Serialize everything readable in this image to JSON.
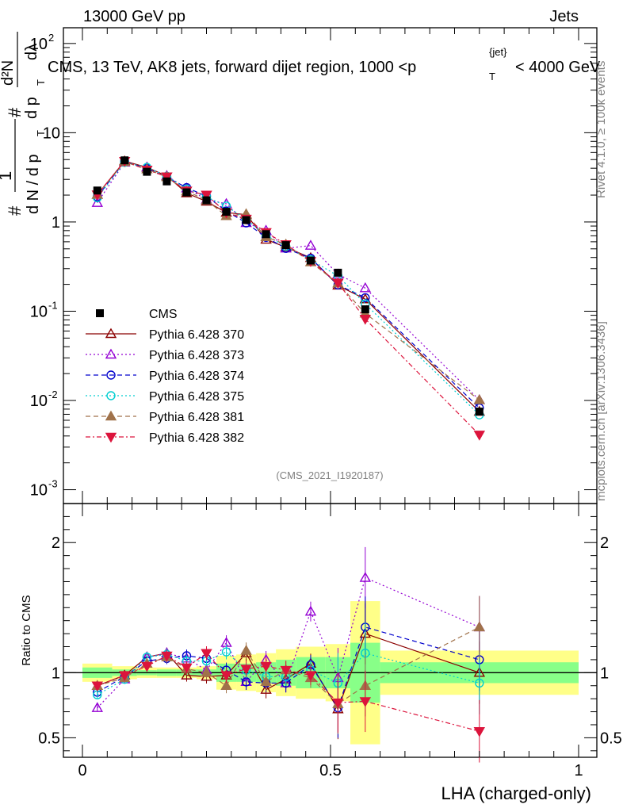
{
  "header": {
    "left": "13000 GeV pp",
    "right": "Jets"
  },
  "title_main": "CMS, 13 TeV, AK8 jets, forward dijet region, 1000 <p",
  "title_sub": "T",
  "title_sup": "{jet}",
  "title_tail": "< 4000 GeV",
  "side_text": {
    "rivet": "Rivet 4.1.0, ≥ 100k events",
    "mcplots": "mcplots.cern.ch [arXiv:1306.3436]"
  },
  "analysis_tag": "(CMS_2021_I1920187)",
  "ylabel_ratio": "Ratio to CMS",
  "xlabel": "LHA (charged-only)",
  "ylabel_main": {
    "hash1": "#",
    "one": "1",
    "dn": "d N / d p",
    "t": "T",
    "hash2": "#",
    "d2n": "d²N",
    "dpt": "d p",
    "t2": "T",
    "dl": "dλ"
  },
  "chart_data": {
    "type": "scatter",
    "xlabel": "LHA (charged-only)",
    "xlim": [
      0,
      1
    ],
    "main_yscale": "log",
    "main_ylim": [
      0.0007,
      150
    ],
    "main_yticks": [
      {
        "value": 0.001,
        "label": "10",
        "exp": "-3"
      },
      {
        "value": 0.01,
        "label": "10",
        "exp": "-2"
      },
      {
        "value": 0.1,
        "label": "10",
        "exp": "-1"
      },
      {
        "value": 1,
        "label": "1",
        "exp": ""
      },
      {
        "value": 10,
        "label": "10",
        "exp": ""
      },
      {
        "value": 100,
        "label": "10",
        "exp": "2"
      }
    ],
    "ratio_ylim": [
      0.35,
      2.3
    ],
    "ratio_yticks": [
      {
        "value": 0.5,
        "label": "0.5"
      },
      {
        "value": 1,
        "label": "1"
      },
      {
        "value": 2,
        "label": "2"
      }
    ],
    "xticks": [
      {
        "value": 0,
        "label": "0"
      },
      {
        "value": 0.5,
        "label": "0.5"
      },
      {
        "value": 1,
        "label": "1"
      }
    ],
    "bin_edges": [
      0,
      0.06,
      0.11,
      0.15,
      0.19,
      0.23,
      0.27,
      0.31,
      0.35,
      0.39,
      0.43,
      0.49,
      0.54,
      0.6,
      1.0
    ],
    "x": [
      0.03,
      0.085,
      0.13,
      0.17,
      0.21,
      0.25,
      0.29,
      0.33,
      0.37,
      0.41,
      0.46,
      0.515,
      0.57,
      0.8
    ],
    "data": {
      "name": "CMS",
      "values": [
        2.25,
        4.9,
        3.65,
        2.85,
        2.15,
        1.75,
        1.3,
        1.05,
        0.73,
        0.55,
        0.37,
        0.27,
        0.105,
        0.0075
      ],
      "err_yellow": [
        0.07,
        0.05,
        0.04,
        0.04,
        0.04,
        0.05,
        0.13,
        0.14,
        0.15,
        0.18,
        0.2,
        0.22,
        0.55,
        0.17
      ],
      "err_green": [
        0.04,
        0.025,
        0.02,
        0.025,
        0.025,
        0.025,
        0.07,
        0.07,
        0.08,
        0.1,
        0.12,
        0.12,
        0.23,
        0.08
      ]
    },
    "series": [
      {
        "name": "Pythia 6.428 370",
        "color": "#8b0000",
        "marker": "triangle-open",
        "dash": "",
        "ratio": [
          0.9,
          0.98,
          1.12,
          1.15,
          0.98,
          0.97,
          0.98,
          1.15,
          0.87,
          0.95,
          1.07,
          0.72,
          1.3,
          1.0
        ]
      },
      {
        "name": "Pythia 6.428 373",
        "color": "#9400d3",
        "marker": "triangle-open",
        "dash": "2,3",
        "ratio": [
          0.73,
          0.95,
          1.12,
          1.15,
          1.11,
          1.02,
          1.23,
          0.93,
          1.1,
          0.92,
          1.47,
          0.96,
          1.73,
          1.35
        ]
      },
      {
        "name": "Pythia 6.428 374",
        "color": "#0000cd",
        "marker": "circle-open",
        "dash": "6,4",
        "ratio": [
          0.85,
          0.97,
          1.09,
          1.11,
          1.13,
          1.11,
          1.02,
          0.93,
          0.92,
          0.92,
          1.06,
          0.73,
          1.35,
          1.1
        ]
      },
      {
        "name": "Pythia 6.428 375",
        "color": "#00ced1",
        "marker": "circle-open",
        "dash": "2,3",
        "ratio": [
          0.83,
          0.95,
          1.12,
          1.14,
          1.09,
          1.09,
          1.16,
          1.02,
          0.97,
          0.97,
          1.02,
          0.92,
          1.15,
          0.92
        ]
      },
      {
        "name": "Pythia 6.428 381",
        "color": "#a0724a",
        "marker": "triangle-filled",
        "dash": "6,4",
        "ratio": [
          0.9,
          0.96,
          1.07,
          1.12,
          1.03,
          1.0,
          0.9,
          1.17,
          0.93,
          1.02,
          0.96,
          0.76,
          0.9,
          1.35
        ]
      },
      {
        "name": "Pythia 6.428 382",
        "color": "#dc143c",
        "marker": "triangle-down-filled",
        "dash": "6,3,2,3",
        "ratio": [
          0.9,
          0.98,
          1.05,
          1.13,
          1.04,
          1.15,
          0.98,
          1.03,
          1.05,
          1.02,
          0.98,
          0.77,
          0.78,
          0.55
        ]
      }
    ]
  }
}
